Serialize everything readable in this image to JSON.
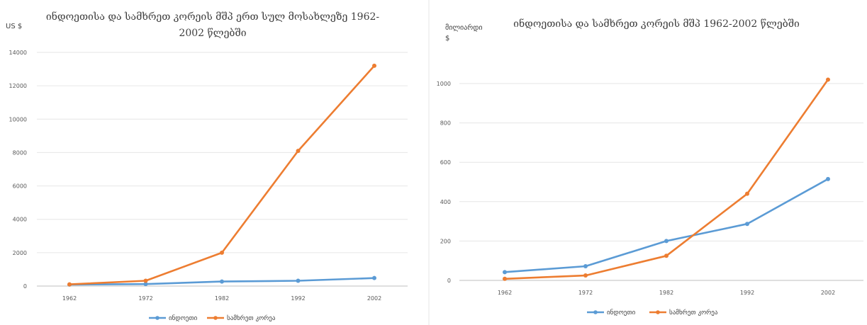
{
  "colors": {
    "india": "#5b9bd5",
    "korea": "#ed7d31",
    "grid": "#e6e6e6",
    "axis": "#bfbfbf"
  },
  "chart_data": [
    {
      "type": "line",
      "title_line1": "ინდოეთისა და სამხრეთ კორეის მშპ ერთ სულ მოსახლეზე 1962-",
      "title_line2": "2002 წლებში",
      "ylabel": "US $",
      "categories": [
        "1962",
        "1972",
        "1982",
        "1992",
        "2002"
      ],
      "ylim": [
        0,
        14000
      ],
      "yticks": [
        "0",
        "2000",
        "4000",
        "6000",
        "8000",
        "10000",
        "12000",
        "14000"
      ],
      "grid": true,
      "legend_position": "bottom",
      "series": [
        {
          "name": "ინდოეთი",
          "values": [
            90,
            120,
            270,
            320,
            480
          ]
        },
        {
          "name": "სამხრეთ კორეა",
          "values": [
            100,
            320,
            2000,
            8100,
            13200
          ]
        }
      ]
    },
    {
      "type": "line",
      "title": "ინდოეთისა და სამხრეთ კორეის მშპ 1962-2002 წლებში",
      "ylabel_line1": "მილიარდი",
      "ylabel_line2": "$",
      "categories": [
        "1962",
        "1972",
        "1982",
        "1992",
        "2002"
      ],
      "ylim": [
        0,
        1000
      ],
      "yticks": [
        "0",
        "200",
        "400",
        "600",
        "800",
        "1000"
      ],
      "grid": true,
      "legend_position": "bottom",
      "series": [
        {
          "name": "ინდოეთი",
          "values": [
            42,
            72,
            200,
            287,
            515
          ]
        },
        {
          "name": "სამხრეთ კორეა",
          "values": [
            8,
            25,
            125,
            440,
            1020
          ]
        }
      ]
    }
  ]
}
